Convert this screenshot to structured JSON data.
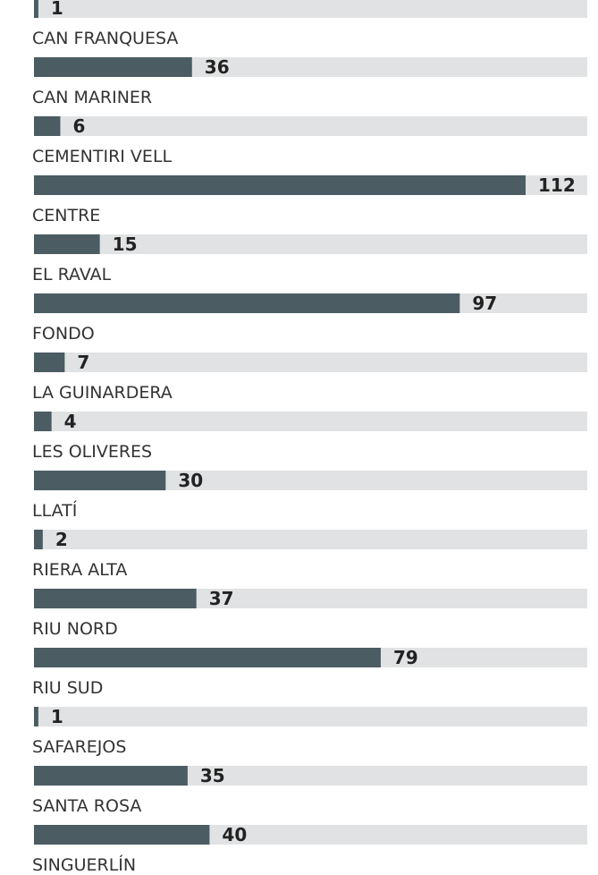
{
  "chart_data": {
    "type": "bar",
    "categories": [
      "CAN FRANQUESA",
      "CAN MARINER",
      "CEMENTIRI VELL",
      "CENTRE",
      "EL RAVAL",
      "FONDO",
      "LA GUINARDERA",
      "LES OLIVERES",
      "LLATÍ",
      "RIERA ALTA",
      "RIU NORD",
      "RIU SUD",
      "SAFAREJOS",
      "SANTA ROSA",
      "SINGUERLÍN"
    ],
    "values": [
      1,
      36,
      6,
      112,
      15,
      97,
      7,
      4,
      30,
      2,
      37,
      79,
      1,
      35,
      40
    ],
    "color": "#4b5c63",
    "track_color": "#e1e2e3",
    "xlim": [
      0,
      112
    ]
  }
}
